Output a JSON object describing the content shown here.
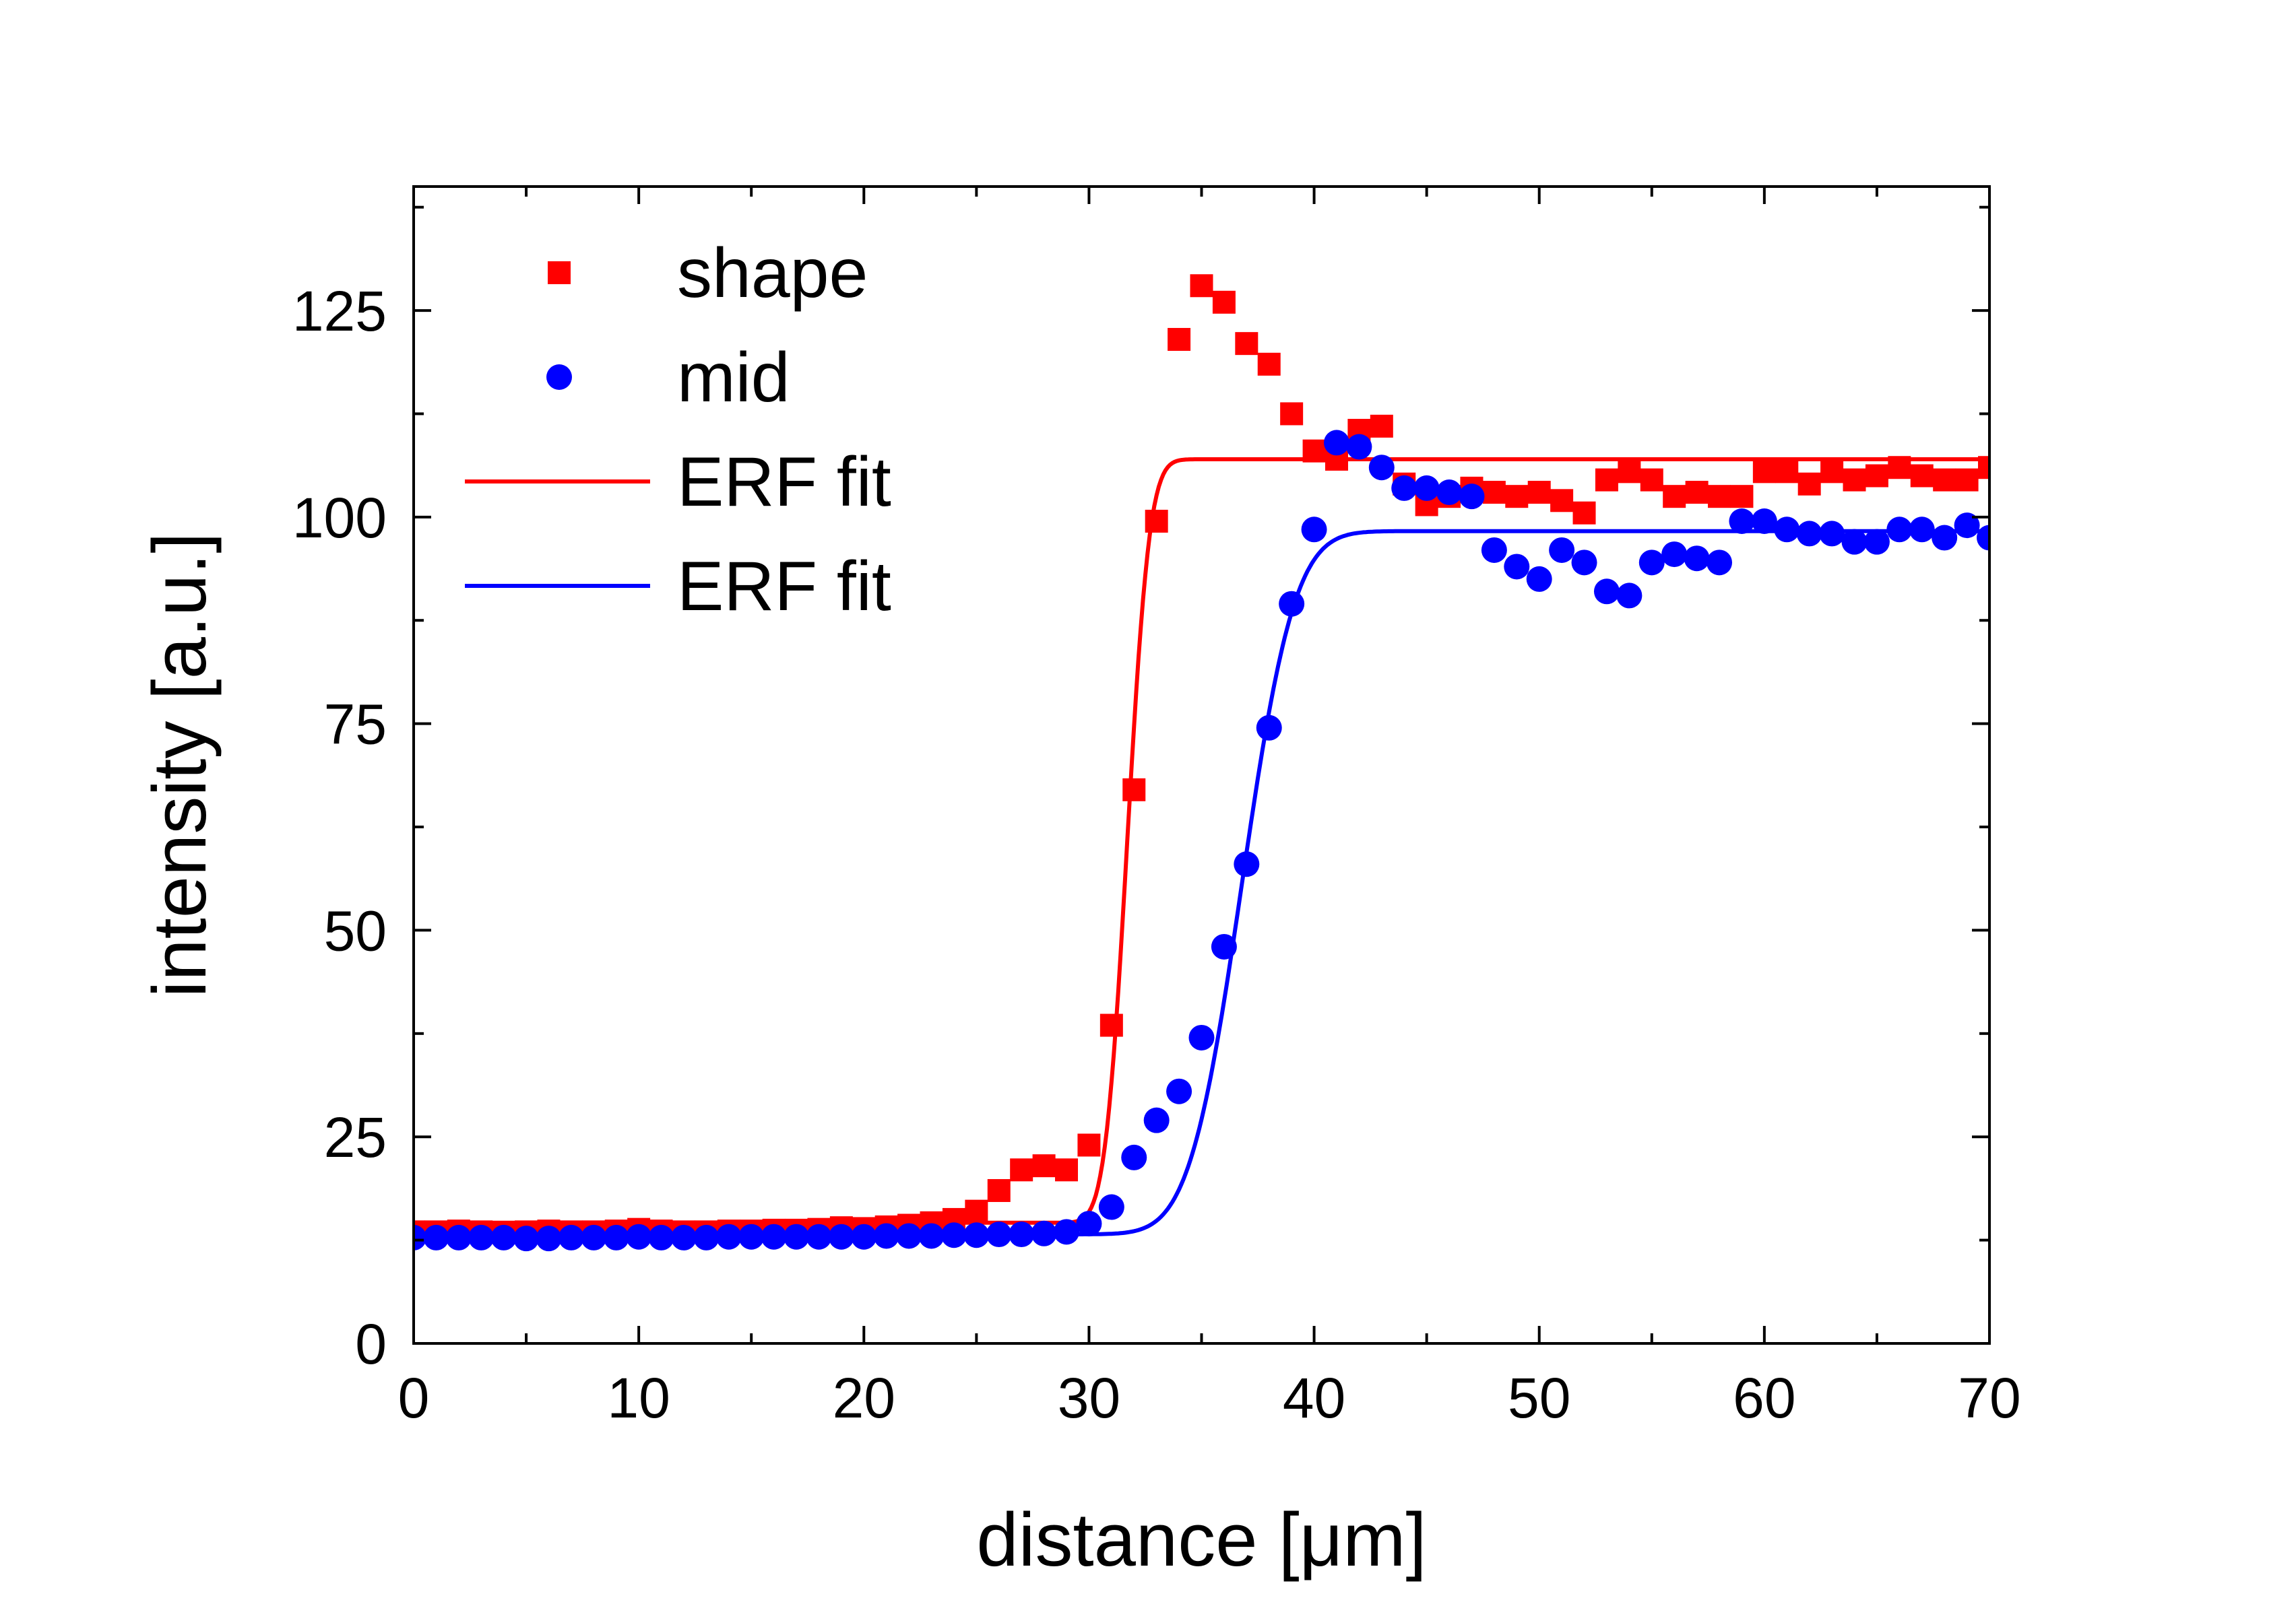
{
  "chart_data": {
    "type": "scatter",
    "xlabel": "distance [μm]",
    "ylabel": "intensity [a.u.]",
    "xlim": [
      0,
      70
    ],
    "ylim": [
      0,
      140
    ],
    "xticks": [
      0,
      10,
      20,
      30,
      40,
      50,
      60,
      70
    ],
    "yticks": [
      0,
      25,
      50,
      75,
      100,
      125
    ],
    "grid": false,
    "legend_position": "top-left",
    "series": [
      {
        "name": "shape",
        "kind": "points",
        "marker": "square",
        "color": "#ff0000",
        "x": [
          0,
          1,
          2,
          3,
          4,
          5,
          6,
          7,
          8,
          9,
          10,
          11,
          12,
          13,
          14,
          15,
          16,
          17,
          18,
          19,
          20,
          21,
          22,
          23,
          24,
          25,
          26,
          27,
          28,
          29,
          30,
          31,
          32,
          33,
          34,
          35,
          36,
          37,
          38,
          39,
          40,
          41,
          42,
          43,
          44,
          45,
          46,
          47,
          48,
          49,
          50,
          51,
          52,
          53,
          54,
          55,
          56,
          57,
          58,
          59,
          60,
          61,
          62,
          63,
          64,
          65,
          66,
          67,
          68,
          69,
          70
        ],
        "y": [
          13.5,
          13.5,
          13.6,
          13.5,
          13.4,
          13.5,
          13.6,
          13.5,
          13.5,
          13.6,
          13.8,
          13.6,
          13.5,
          13.5,
          13.6,
          13.6,
          13.7,
          13.7,
          13.8,
          14.0,
          13.9,
          14.1,
          14.3,
          14.6,
          15.0,
          16.0,
          18.5,
          21.0,
          21.5,
          21.0,
          24.0,
          38.5,
          67.0,
          99.5,
          121.5,
          128.0,
          126.0,
          121.0,
          118.5,
          112.5,
          108.0,
          107.0,
          110.5,
          111.0,
          104.0,
          101.5,
          102.5,
          103.5,
          103.0,
          102.5,
          103.0,
          102.0,
          100.5,
          104.5,
          105.5,
          104.5,
          102.5,
          103.0,
          102.5,
          102.5,
          105.5,
          105.5,
          104.0,
          105.5,
          104.5,
          105.0,
          106.0,
          105.0,
          104.5,
          104.5,
          106.0
        ]
      },
      {
        "name": "mid",
        "kind": "points",
        "marker": "circle",
        "color": "#0000ff",
        "x": [
          0,
          1,
          2,
          3,
          4,
          5,
          6,
          7,
          8,
          9,
          10,
          11,
          12,
          13,
          14,
          15,
          16,
          17,
          18,
          19,
          20,
          21,
          22,
          23,
          24,
          25,
          26,
          27,
          28,
          29,
          30,
          31,
          32,
          33,
          34,
          35,
          36,
          37,
          38,
          39,
          40,
          41,
          42,
          43,
          44,
          45,
          46,
          47,
          48,
          49,
          50,
          51,
          52,
          53,
          54,
          55,
          56,
          57,
          58,
          59,
          60,
          61,
          62,
          63,
          64,
          65,
          66,
          67,
          68,
          69,
          70
        ],
        "y": [
          12.8,
          12.8,
          12.8,
          12.8,
          12.8,
          12.7,
          12.7,
          12.8,
          12.8,
          12.8,
          12.9,
          12.8,
          12.8,
          12.8,
          12.9,
          12.9,
          12.9,
          12.9,
          12.9,
          12.9,
          12.9,
          13.0,
          13.0,
          13.0,
          13.1,
          13.1,
          13.2,
          13.2,
          13.3,
          13.5,
          14.5,
          16.5,
          22.5,
          27.0,
          30.5,
          37.0,
          48.0,
          58.0,
          74.5,
          89.5,
          98.5,
          109.0,
          108.5,
          106.0,
          103.5,
          103.5,
          103.0,
          102.5,
          96.0,
          94.0,
          92.5,
          96.0,
          94.5,
          91.0,
          90.5,
          94.5,
          95.5,
          95.0,
          94.5,
          99.5,
          99.5,
          98.5,
          98.0,
          98.0,
          97.0,
          97.0,
          98.5,
          98.5,
          97.5,
          99.0,
          97.5
        ]
      },
      {
        "name": "ERF fit",
        "kind": "line",
        "color": "#ff0000",
        "baseline": 14.6,
        "plateau": 107.0,
        "center": 31.7,
        "width": 1.1,
        "x_range": [
          0,
          70
        ]
      },
      {
        "name": "ERF fit",
        "kind": "line",
        "color": "#0000ff",
        "baseline": 13.2,
        "plateau": 98.3,
        "center": 36.8,
        "width": 2.6,
        "x_range": [
          0,
          70
        ]
      }
    ]
  }
}
